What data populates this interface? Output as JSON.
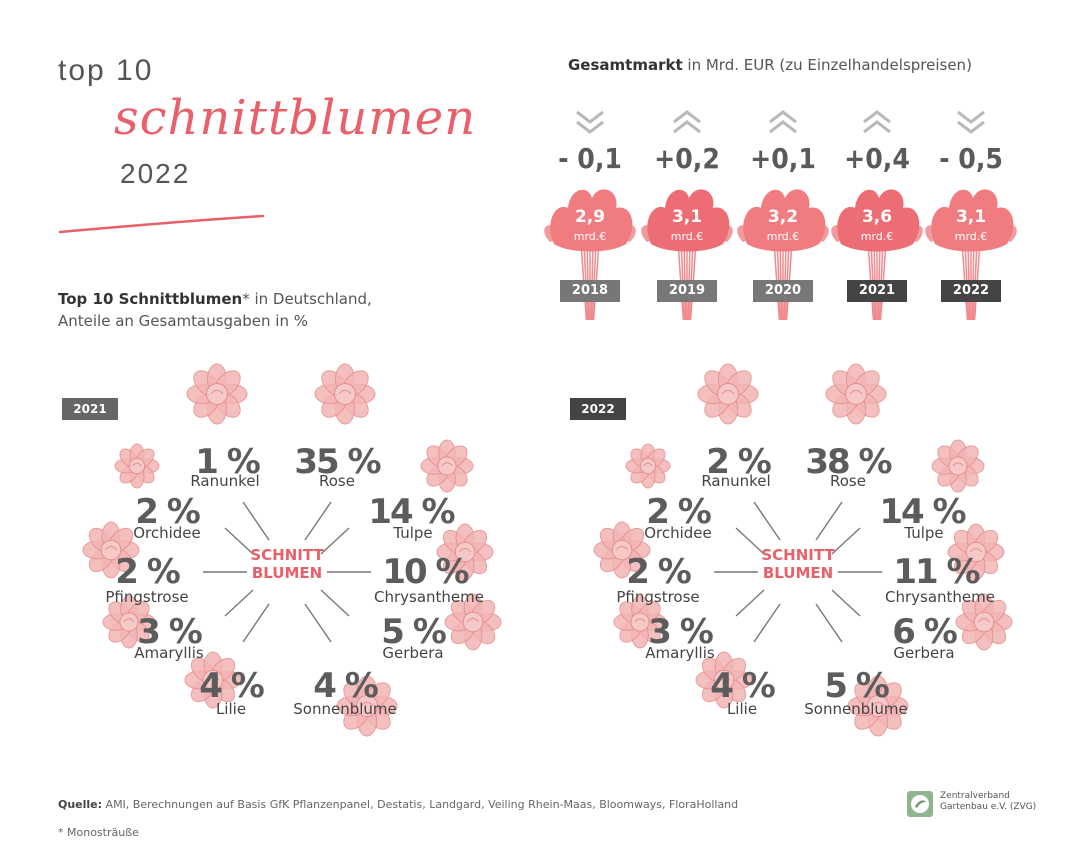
{
  "header": {
    "line1": "top 10",
    "line2": "schnittblumen",
    "line3": "2022"
  },
  "subtitle": {
    "bold": "Top 10 Schnittblumen",
    "rest": "* in Deutschland,",
    "line2": "Anteile an Gesamtausgaben in %"
  },
  "market": {
    "title_bold": "Gesamtmarkt",
    "title_rest": " in Mrd. EUR (zu Einzelhandelspreisen)",
    "unit": "mrd.€",
    "years": [
      {
        "year": "2018",
        "value": "2,9",
        "delta": "- 0,1",
        "dir": "down"
      },
      {
        "year": "2019",
        "value": "3,1",
        "delta": "+0,2",
        "dir": "up"
      },
      {
        "year": "2020",
        "value": "3,2",
        "delta": "+0,1",
        "dir": "up"
      },
      {
        "year": "2021",
        "value": "3,6",
        "delta": "+0,4",
        "dir": "up"
      },
      {
        "year": "2022",
        "value": "3,1",
        "delta": "- 0,5",
        "dir": "down"
      }
    ]
  },
  "center_label": [
    "SCHNITT",
    "BLUMEN"
  ],
  "panels": [
    {
      "year": "2021",
      "items": [
        {
          "name": "Ranunkel",
          "pct": "1 %"
        },
        {
          "name": "Rose",
          "pct": "35 %"
        },
        {
          "name": "Orchidee",
          "pct": "2 %"
        },
        {
          "name": "Tulpe",
          "pct": "14 %"
        },
        {
          "name": "Pfingstrose",
          "pct": "2 %"
        },
        {
          "name": "Chrysantheme",
          "pct": "10 %"
        },
        {
          "name": "Amaryllis",
          "pct": "3 %"
        },
        {
          "name": "Gerbera",
          "pct": "5 %"
        },
        {
          "name": "Lilie",
          "pct": "4 %"
        },
        {
          "name": "Sonnenblume",
          "pct": "4 %"
        }
      ]
    },
    {
      "year": "2022",
      "items": [
        {
          "name": "Ranunkel",
          "pct": "2 %"
        },
        {
          "name": "Rose",
          "pct": "38 %"
        },
        {
          "name": "Orchidee",
          "pct": "2 %"
        },
        {
          "name": "Tulpe",
          "pct": "14 %"
        },
        {
          "name": "Pfingstrose",
          "pct": "2 %"
        },
        {
          "name": "Chrysantheme",
          "pct": "11 %"
        },
        {
          "name": "Amaryllis",
          "pct": "3 %"
        },
        {
          "name": "Gerbera",
          "pct": "6 %"
        },
        {
          "name": "Lilie",
          "pct": "4 %"
        },
        {
          "name": "Sonnenblume",
          "pct": "5 %"
        }
      ]
    }
  ],
  "chart_data": [
    {
      "type": "bar",
      "title": "Gesamtmarkt in Mrd. EUR (zu Einzelhandelspreisen)",
      "categories": [
        "2018",
        "2019",
        "2020",
        "2021",
        "2022"
      ],
      "values": [
        2.9,
        3.1,
        3.2,
        3.6,
        3.1
      ],
      "changes": [
        -0.1,
        0.2,
        0.1,
        0.4,
        -0.5
      ]
    },
    {
      "type": "pie",
      "title": "2021",
      "categories": [
        "Ranunkel",
        "Rose",
        "Orchidee",
        "Tulpe",
        "Pfingstrose",
        "Chrysantheme",
        "Amaryllis",
        "Gerbera",
        "Lilie",
        "Sonnenblume"
      ],
      "values": [
        1,
        35,
        2,
        14,
        2,
        10,
        3,
        5,
        4,
        4
      ]
    },
    {
      "type": "pie",
      "title": "2022",
      "categories": [
        "Ranunkel",
        "Rose",
        "Orchidee",
        "Tulpe",
        "Pfingstrose",
        "Chrysantheme",
        "Amaryllis",
        "Gerbera",
        "Lilie",
        "Sonnenblume"
      ],
      "values": [
        2,
        38,
        2,
        14,
        2,
        11,
        3,
        6,
        4,
        5
      ]
    }
  ],
  "colors": {
    "accent": "#e8606a",
    "flower_fill": "#f3b5b5",
    "flower_stroke": "#e58d8d",
    "text": "#555555"
  },
  "footer": {
    "source_bold": "Quelle:",
    "source_rest": " AMI, Berechnungen auf Basis GfK Pflanzenpanel, Destatis, Landgard, Veiling Rhein-Maas, Bloomways, FloraHolland",
    "footnote": "* Monosträuße",
    "logo_line1": "Zentralverband",
    "logo_line2": "Gartenbau e.V. (ZVG)"
  }
}
